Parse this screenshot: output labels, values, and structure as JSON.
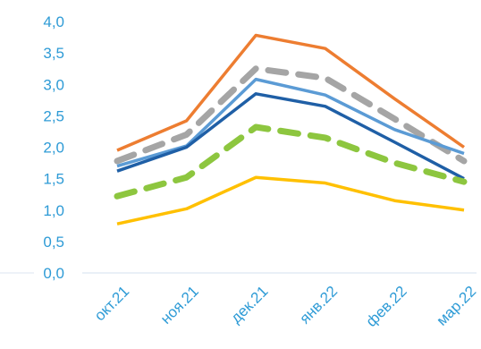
{
  "chart_data": {
    "type": "line",
    "categories": [
      "окт.21",
      "ноя.21",
      "дек.21",
      "янв.22",
      "фев.22",
      "мар.22"
    ],
    "ylim": [
      0,
      4
    ],
    "yticks": [
      "0,0",
      "0,5",
      "1,0",
      "1,5",
      "2,0",
      "2,5",
      "3,0",
      "3,5",
      "4,0"
    ],
    "grid": false,
    "series": [
      {
        "values": [
          1.95,
          2.42,
          3.78,
          3.57,
          2.77,
          2.0
        ],
        "color": "#ED7D31",
        "style": "solid",
        "width": 3.5
      },
      {
        "values": [
          1.78,
          2.2,
          3.25,
          3.1,
          2.45,
          1.78
        ],
        "color": "#A5A5A5",
        "style": "dashed",
        "width": 7
      },
      {
        "values": [
          1.7,
          2.02,
          3.08,
          2.83,
          2.28,
          1.9
        ],
        "color": "#5B9BD5",
        "style": "solid",
        "width": 3.5
      },
      {
        "values": [
          1.62,
          2.0,
          2.85,
          2.65,
          2.08,
          1.5
        ],
        "color": "#1F5FA6",
        "style": "solid",
        "width": 3.5
      },
      {
        "values": [
          1.22,
          1.52,
          2.32,
          2.15,
          1.75,
          1.45
        ],
        "color": "#8DC63F",
        "style": "dashed",
        "width": 7
      },
      {
        "values": [
          0.78,
          1.02,
          1.52,
          1.43,
          1.15,
          1.0
        ],
        "color": "#FFC000",
        "style": "solid",
        "width": 3.5
      }
    ]
  }
}
